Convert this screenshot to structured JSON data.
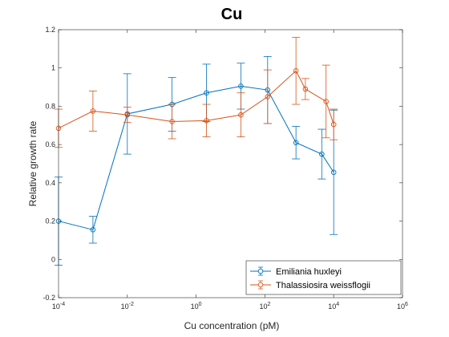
{
  "chart_data": {
    "type": "line",
    "title": "Cu",
    "xlabel": "Cu concentration (pM)",
    "ylabel": "Relative growth rate",
    "xscale": "log",
    "xlim": [
      0.0001,
      1000000
    ],
    "ylim": [
      -0.2,
      1.2
    ],
    "x_ticks": [
      {
        "value": 0.0001,
        "base": "10",
        "exp": "-4"
      },
      {
        "value": 0.01,
        "base": "10",
        "exp": "-2"
      },
      {
        "value": 1,
        "base": "10",
        "exp": "0"
      },
      {
        "value": 100,
        "base": "10",
        "exp": "2"
      },
      {
        "value": 10000,
        "base": "10",
        "exp": "4"
      },
      {
        "value": 1000000,
        "base": "10",
        "exp": "6"
      }
    ],
    "y_ticks": [
      {
        "value": -0.2,
        "label": "-0.2"
      },
      {
        "value": 0,
        "label": "0"
      },
      {
        "value": 0.2,
        "label": "0.2"
      },
      {
        "value": 0.4,
        "label": "0.4"
      },
      {
        "value": 0.6,
        "label": "0.6"
      },
      {
        "value": 0.8,
        "label": "0.8"
      },
      {
        "value": 1,
        "label": "1"
      },
      {
        "value": 1.2,
        "label": "1.2"
      }
    ],
    "grid": false,
    "box": true,
    "legend": "bottom-right",
    "series": [
      {
        "name": "Emiliania huxleyi",
        "color": "#0072BD",
        "marker": "circle",
        "x": [
          0.0001,
          0.001,
          0.01,
          0.2,
          2,
          20,
          120,
          800,
          4500,
          10000
        ],
        "y": [
          0.2,
          0.155,
          0.76,
          0.81,
          0.87,
          0.905,
          0.885,
          0.61,
          0.55,
          0.455
        ],
        "err": [
          0.23,
          0.07,
          0.21,
          0.14,
          0.15,
          0.12,
          0.175,
          0.085,
          0.13,
          0.325
        ]
      },
      {
        "name": "Thalassiosira weissflogii",
        "color": "#D95319",
        "marker": "circle",
        "x": [
          0.0001,
          0.001,
          0.01,
          0.2,
          2,
          20,
          120,
          800,
          1500,
          6000,
          10000
        ],
        "y": [
          0.685,
          0.775,
          0.755,
          0.72,
          0.725,
          0.755,
          0.85,
          0.985,
          0.89,
          0.825,
          0.705
        ],
        "err": [
          0.1,
          0.105,
          0.04,
          0.09,
          0.085,
          0.115,
          0.14,
          0.175,
          0.055,
          0.19,
          0.08
        ]
      }
    ]
  }
}
